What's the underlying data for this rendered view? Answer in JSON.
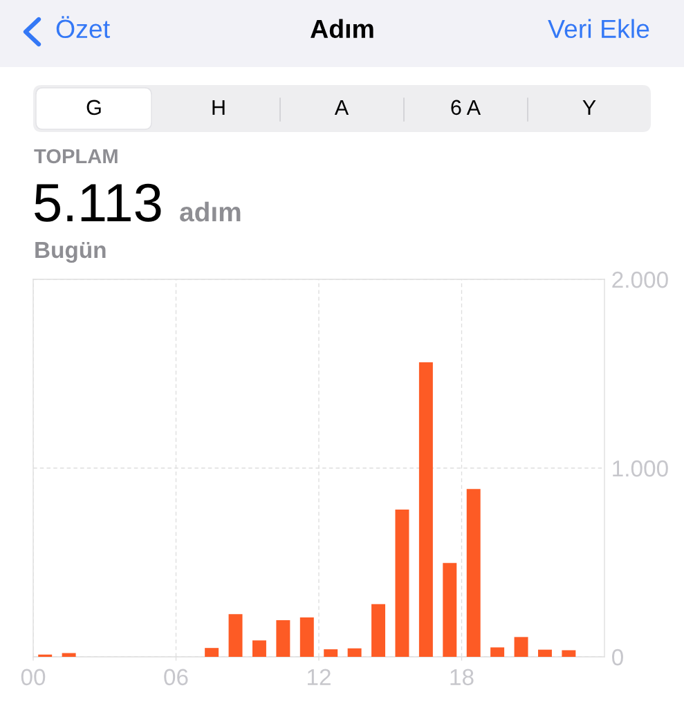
{
  "chart_data": {
    "type": "bar",
    "title": "Adım",
    "annotations": [
      "Özet",
      "Veri Ekle",
      "G",
      "H",
      "A",
      "6 A",
      "Y",
      "TOPLAM",
      "5.113",
      "adım",
      "Bugün"
    ],
    "x": [
      0.5,
      1.5,
      7.5,
      8.5,
      9.5,
      10.5,
      11.5,
      12.5,
      13.5,
      14.5,
      15.5,
      16.5,
      17.5,
      18.5,
      19.5,
      20.5,
      21.5,
      22.5
    ],
    "values": [
      12,
      20,
      47,
      226,
      87,
      194,
      209,
      40,
      45,
      279,
      780,
      1560,
      497,
      889,
      50,
      105,
      38,
      35
    ],
    "color": "#fd5b25",
    "xlim": [
      0,
      24
    ],
    "xticks": [
      {
        "value": 0,
        "label": "00"
      },
      {
        "value": 6,
        "label": "06"
      },
      {
        "value": 12,
        "label": "12"
      },
      {
        "value": 18,
        "label": "18"
      }
    ],
    "ylim": [
      0,
      2000
    ],
    "yticks": [
      0,
      {
        "value": 1000,
        "label": "1.000"
      },
      {
        "value": 2000,
        "label": "2.000"
      }
    ],
    "grid": true
  }
}
